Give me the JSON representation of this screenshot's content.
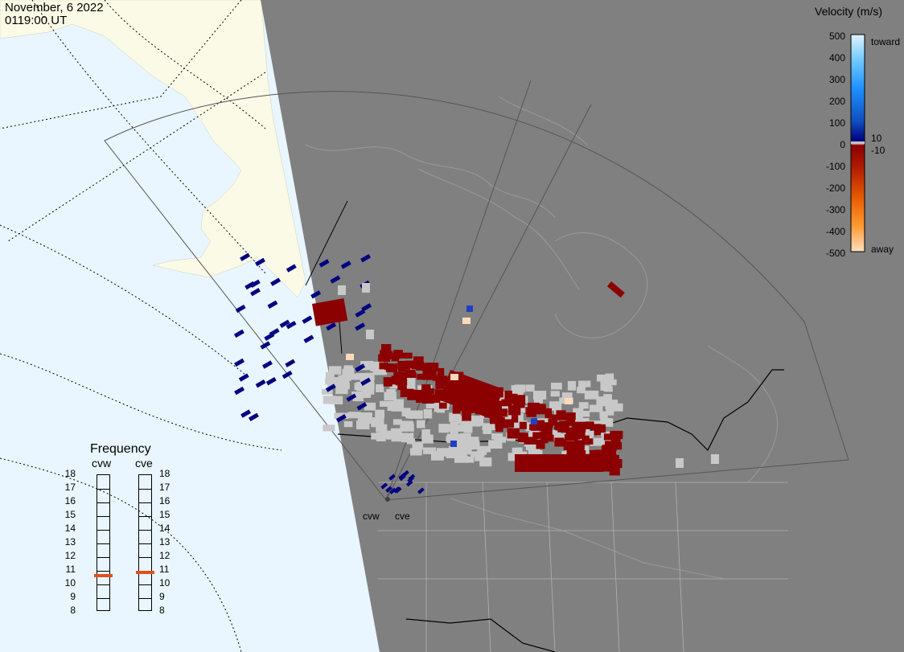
{
  "title": {
    "date": "November, 6 2022",
    "time": "0119:00 UT"
  },
  "colorbar": {
    "title": "Velocity (m/s)",
    "ticks": [
      "500",
      "400",
      "300",
      "200",
      "100",
      "0",
      "-100",
      "-200",
      "-300",
      "-400",
      "-500"
    ],
    "toward_label": "toward",
    "away_label": "away",
    "threshold_pos": "10",
    "threshold_neg": "-10"
  },
  "frequency_panel": {
    "title": "Frequency",
    "radars": [
      {
        "name": "cvw",
        "freq_mhz": 10.6
      },
      {
        "name": "cve",
        "freq_mhz": 10.8
      }
    ],
    "scale": [
      "18",
      "17",
      "16",
      "15",
      "14",
      "13",
      "12",
      "11",
      "10",
      "9",
      "8"
    ]
  },
  "radar_labels": [
    "cvw",
    "cve"
  ],
  "colors": {
    "ocean": "#e9f6ff",
    "land_day": "#fafae6",
    "night": "#808080",
    "toward_strong": "#2040c0",
    "toward_weak": "#000080",
    "away_weak": "#8b0000",
    "away_strong": "#ffdab9",
    "ground_scatter": "#c8c8c8",
    "freq_marker": "#e05020"
  }
}
